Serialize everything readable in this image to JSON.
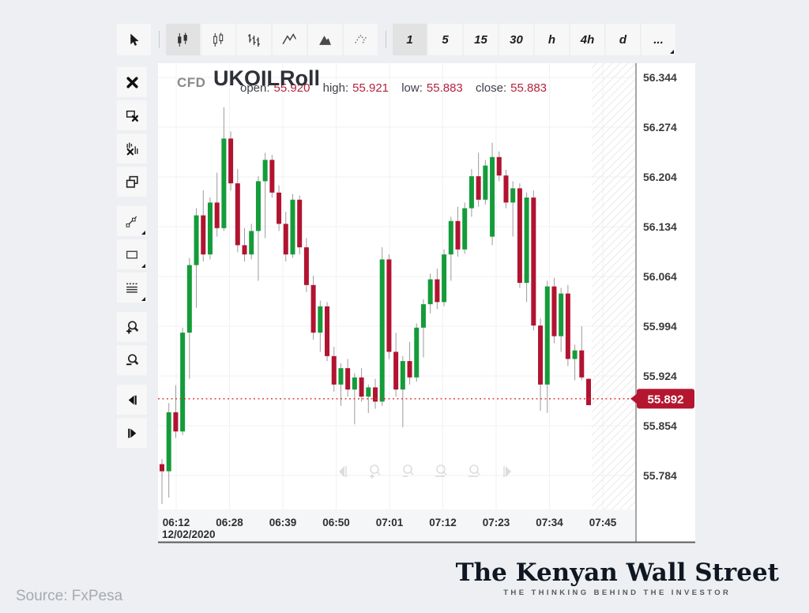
{
  "toolbar": {
    "tools": [
      {
        "name": "cursor",
        "selected": false
      }
    ],
    "chart_types": [
      {
        "name": "candles-solid",
        "selected": true
      },
      {
        "name": "candles-hollow",
        "selected": false
      },
      {
        "name": "bars-ohlc",
        "selected": false
      },
      {
        "name": "line-chart",
        "selected": false
      },
      {
        "name": "area-chart",
        "selected": false
      },
      {
        "name": "dot-chart",
        "selected": false
      }
    ],
    "timeframes": [
      {
        "label": "1",
        "selected": true
      },
      {
        "label": "5",
        "selected": false
      },
      {
        "label": "15",
        "selected": false
      },
      {
        "label": "30",
        "selected": false
      },
      {
        "label": "h",
        "selected": false
      },
      {
        "label": "4h",
        "selected": false
      },
      {
        "label": "d",
        "selected": false
      },
      {
        "label": "...",
        "selected": false,
        "fold": true
      }
    ]
  },
  "sidebar": {
    "buttons": [
      {
        "name": "close",
        "icon": "close"
      },
      {
        "name": "delete-object",
        "icon": "delete-object"
      },
      {
        "name": "delete-indicators",
        "icon": "delete-indicators"
      },
      {
        "name": "tile-windows",
        "icon": "tile-windows"
      },
      {
        "name": "trend-line",
        "icon": "trend-line",
        "fold": true,
        "gap": true
      },
      {
        "name": "rectangle-tool",
        "icon": "rectangle-tool",
        "fold": true
      },
      {
        "name": "levels-tool",
        "icon": "levels-tool",
        "fold": true
      },
      {
        "name": "zoom-in",
        "icon": "zoom-in",
        "gap": true
      },
      {
        "name": "zoom-out",
        "icon": "zoom-out"
      },
      {
        "name": "scroll-left",
        "icon": "scroll-left",
        "gap": true
      },
      {
        "name": "scroll-right",
        "icon": "scroll-right"
      }
    ]
  },
  "chart": {
    "market_type": "CFD",
    "symbol": "UKOILRoll",
    "legend": {
      "open_label": "open:",
      "open": "55.920",
      "high_label": "high:",
      "high": "55.921",
      "low_label": "low:",
      "low": "55.883",
      "close_label": "close:",
      "close": "55.883"
    },
    "current_price": "55.892",
    "colors": {
      "up": "#149c3a",
      "down": "#b11331",
      "wick": "#9b9b9b",
      "badge": "#b5162f",
      "price_line": "#e03131",
      "grid": "#f1f1f1",
      "axis_text": "#3b3b3b"
    }
  },
  "chart_data": {
    "type": "candlestick",
    "symbol": "UKOILRoll",
    "interval": "1",
    "date": "12/02/2020",
    "x_labels": [
      "06:12",
      "06:28",
      "06:39",
      "06:50",
      "07:01",
      "07:12",
      "07:23",
      "07:34",
      "07:45"
    ],
    "y_ticks": [
      "56.344",
      "56.274",
      "56.204",
      "56.134",
      "56.064",
      "55.994",
      "55.924",
      "55.854",
      "55.784"
    ],
    "ylim": [
      55.736,
      56.358
    ],
    "last_price": 55.892,
    "ohlc_format": [
      "open",
      "high",
      "low",
      "close"
    ],
    "candles": [
      [
        55.8,
        55.807,
        55.744,
        55.79
      ],
      [
        55.79,
        55.886,
        55.753,
        55.873
      ],
      [
        55.873,
        55.911,
        55.837,
        55.846
      ],
      [
        55.846,
        55.992,
        55.841,
        55.985
      ],
      [
        55.985,
        56.09,
        55.92,
        56.08
      ],
      [
        56.08,
        56.16,
        56.02,
        56.15
      ],
      [
        56.15,
        56.185,
        56.085,
        56.095
      ],
      [
        56.095,
        56.175,
        56.088,
        56.168
      ],
      [
        56.168,
        56.21,
        56.12,
        56.132
      ],
      [
        56.132,
        56.302,
        56.128,
        56.258
      ],
      [
        56.258,
        56.268,
        56.185,
        56.195
      ],
      [
        56.195,
        56.215,
        56.098,
        56.108
      ],
      [
        56.108,
        56.132,
        56.085,
        56.095
      ],
      [
        56.095,
        56.138,
        56.088,
        56.128
      ],
      [
        56.128,
        56.205,
        56.058,
        56.198
      ],
      [
        56.198,
        56.238,
        56.118,
        56.228
      ],
      [
        56.228,
        56.235,
        56.175,
        56.182
      ],
      [
        56.182,
        56.192,
        56.128,
        56.138
      ],
      [
        56.138,
        56.155,
        56.085,
        56.095
      ],
      [
        56.095,
        56.18,
        56.09,
        56.172
      ],
      [
        56.172,
        56.178,
        56.095,
        56.105
      ],
      [
        56.105,
        56.118,
        56.042,
        56.052
      ],
      [
        56.052,
        56.065,
        55.975,
        55.985
      ],
      [
        55.985,
        56.03,
        55.958,
        56.022
      ],
      [
        56.022,
        56.028,
        55.945,
        55.952
      ],
      [
        55.952,
        55.965,
        55.902,
        55.912
      ],
      [
        55.912,
        55.942,
        55.882,
        55.935
      ],
      [
        55.935,
        55.948,
        55.895,
        55.905
      ],
      [
        55.905,
        55.928,
        55.856,
        55.922
      ],
      [
        55.922,
        55.935,
        55.888,
        55.895
      ],
      [
        55.895,
        55.912,
        55.872,
        55.908
      ],
      [
        55.908,
        55.92,
        55.878,
        55.888
      ],
      [
        55.888,
        56.105,
        55.882,
        56.088
      ],
      [
        56.088,
        56.095,
        55.948,
        55.958
      ],
      [
        55.958,
        55.985,
        55.895,
        55.905
      ],
      [
        55.905,
        55.952,
        55.852,
        55.945
      ],
      [
        55.945,
        55.972,
        55.912,
        55.922
      ],
      [
        55.922,
        55.998,
        55.916,
        55.992
      ],
      [
        55.992,
        56.032,
        55.95,
        56.025
      ],
      [
        56.025,
        56.068,
        56.012,
        56.06
      ],
      [
        56.06,
        56.075,
        56.018,
        56.028
      ],
      [
        56.028,
        56.102,
        56.022,
        56.095
      ],
      [
        56.095,
        56.148,
        56.058,
        56.142
      ],
      [
        56.142,
        56.162,
        56.092,
        56.102
      ],
      [
        56.102,
        56.168,
        56.096,
        56.16
      ],
      [
        56.16,
        56.215,
        56.148,
        56.205
      ],
      [
        56.205,
        56.238,
        56.162,
        56.172
      ],
      [
        56.172,
        56.228,
        56.165,
        56.22
      ],
      [
        56.12,
        56.252,
        56.108,
        56.232
      ],
      [
        56.232,
        56.24,
        56.198,
        56.206
      ],
      [
        56.206,
        56.214,
        56.16,
        56.168
      ],
      [
        56.168,
        56.198,
        56.12,
        56.188
      ],
      [
        56.188,
        56.195,
        56.048,
        56.055
      ],
      [
        56.055,
        56.182,
        56.028,
        56.175
      ],
      [
        56.175,
        56.185,
        55.988,
        55.995
      ],
      [
        55.995,
        56.005,
        55.875,
        55.912
      ],
      [
        55.912,
        56.058,
        55.872,
        56.05
      ],
      [
        56.05,
        56.062,
        55.97,
        55.98
      ],
      [
        55.98,
        56.048,
        55.958,
        56.04
      ],
      [
        56.04,
        56.052,
        55.938,
        55.948
      ],
      [
        55.948,
        55.968,
        55.918,
        55.96
      ],
      [
        55.96,
        55.994,
        55.918,
        55.922
      ],
      [
        55.92,
        55.921,
        55.883,
        55.883
      ]
    ]
  },
  "footer": {
    "source": "Source: FxPesa",
    "logo_title": "The Kenyan Wall Street",
    "logo_tagline": "THE THINKING BEHIND THE INVESTOR"
  }
}
